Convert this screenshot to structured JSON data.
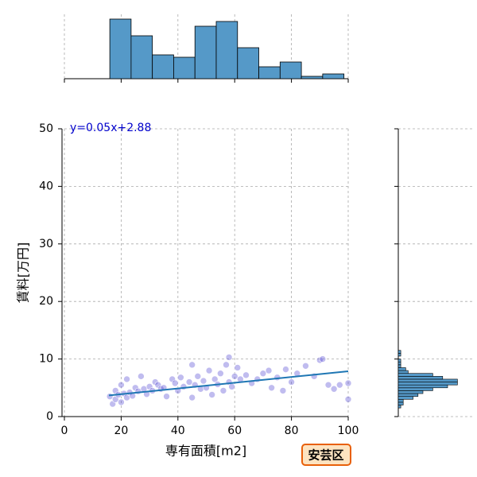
{
  "chart_data": [
    {
      "type": "scatter",
      "x": [
        16,
        17,
        18,
        18,
        19,
        20,
        20,
        21,
        22,
        22,
        23,
        24,
        25,
        26,
        27,
        28,
        29,
        30,
        31,
        32,
        33,
        34,
        35,
        36,
        38,
        39,
        40,
        41,
        42,
        44,
        45,
        45,
        46,
        47,
        48,
        49,
        50,
        51,
        52,
        53,
        54,
        55,
        56,
        57,
        58,
        58,
        59,
        60,
        61,
        62,
        64,
        66,
        68,
        70,
        72,
        73,
        75,
        77,
        78,
        80,
        82,
        85,
        88,
        90,
        91,
        93,
        95,
        97,
        100,
        100
      ],
      "y": [
        3.5,
        2.2,
        3,
        4.5,
        3.8,
        2.5,
        5.5,
        4,
        3.3,
        6.5,
        4.2,
        3.6,
        5,
        4.4,
        7,
        4.8,
        3.9,
        5.2,
        4.5,
        6,
        5.5,
        4.8,
        5,
        3.5,
        6.5,
        5.8,
        4.5,
        6.8,
        5.2,
        6,
        9,
        3.3,
        5.5,
        7,
        4.8,
        6.2,
        5,
        8,
        3.8,
        6.5,
        5.6,
        7.5,
        4.5,
        9,
        10.3,
        6,
        5.2,
        7,
        8.5,
        6.5,
        7.2,
        5.8,
        6.5,
        7.5,
        8,
        5,
        6.8,
        4.5,
        8.2,
        6,
        7.5,
        8.8,
        7,
        9.8,
        10,
        5.5,
        4.8,
        5.5,
        5.8,
        3
      ],
      "color": "#4b3fd1",
      "xlim": [
        0,
        100
      ],
      "ylim": [
        0,
        50
      ],
      "xticks": [
        0,
        20,
        40,
        60,
        80,
        100
      ],
      "yticks": [
        0,
        10,
        20,
        30,
        40,
        50
      ],
      "xlabel": "専有面積[m2]",
      "ylabel": "賃料[万円]",
      "grid": true,
      "fit": {
        "x": [
          15.7,
          100
        ],
        "y": [
          3.67,
          7.88
        ],
        "color": "#1f77b4"
      },
      "annotation": "y=0.05x+2.88",
      "annotation_color": "#0000cc",
      "badge": "安芸区"
    },
    {
      "type": "histogram",
      "bins": [
        16,
        23.5,
        31,
        38.5,
        46,
        53.5,
        61,
        68.5,
        76,
        83.5,
        91,
        98.5
      ],
      "counts": [
        25,
        18,
        10,
        9,
        22,
        24,
        13,
        5,
        7,
        1,
        2
      ],
      "color": "#5599c8",
      "xlim": [
        0,
        100
      ],
      "ylim": [
        0,
        27
      ],
      "xticks": [
        0,
        20,
        40,
        60,
        80,
        100
      ],
      "grid": true
    },
    {
      "type": "histogram",
      "orientation": "horizontal",
      "bins": [
        1.5,
        2,
        2.5,
        3,
        3.5,
        4,
        4.5,
        5,
        5.5,
        6,
        6.5,
        7,
        7.5,
        8,
        8.5,
        9,
        9.5,
        10,
        10.5,
        11,
        11.5
      ],
      "counts": [
        1,
        2,
        2,
        6,
        8,
        10,
        14,
        20,
        24,
        24,
        18,
        14,
        4,
        3,
        1,
        1,
        1,
        0,
        1,
        1
      ],
      "color": "#5599c8",
      "xlim": [
        0,
        30
      ],
      "ylim": [
        0,
        50
      ],
      "yticks": [
        0,
        10,
        20,
        30,
        40,
        50
      ],
      "grid": true
    }
  ]
}
